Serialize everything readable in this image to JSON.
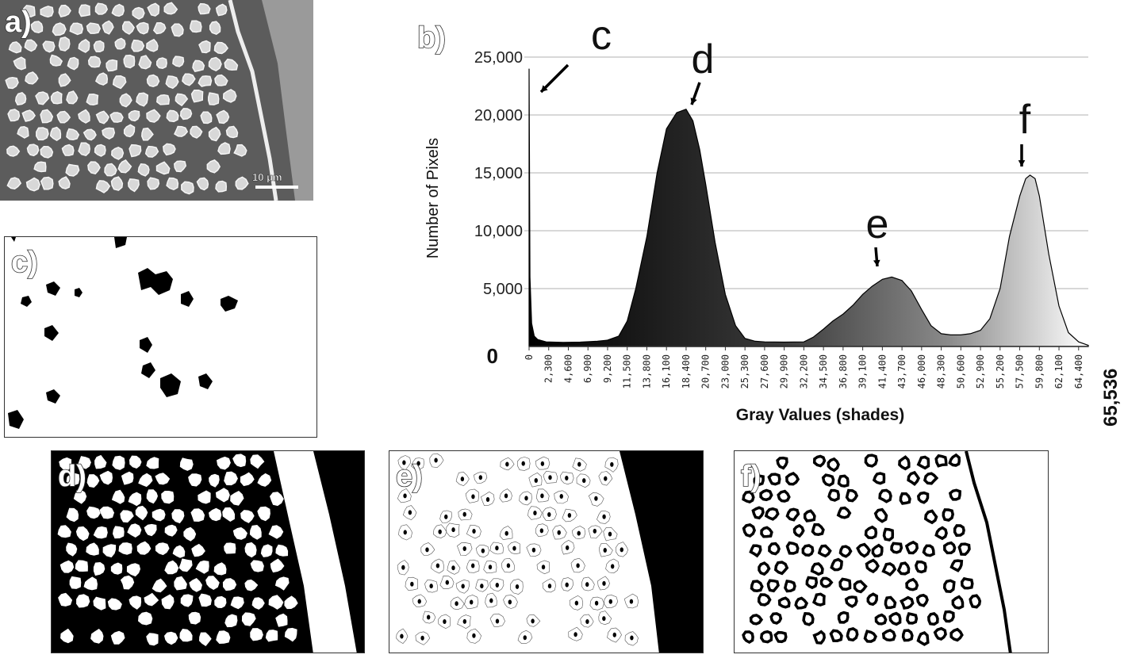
{
  "panels": {
    "a": {
      "label": "a)",
      "scalebar": "10 μm"
    },
    "b": {
      "label": "b)"
    },
    "c": {
      "label": "c)"
    },
    "d": {
      "label": "d)"
    },
    "e": {
      "label": "e)"
    },
    "f": {
      "label": "f)"
    }
  },
  "chart_data": {
    "type": "area",
    "ylabel": "Number of Pixels",
    "xlabel": "Gray Values (shades)",
    "ylim": [
      0,
      25000
    ],
    "xlim": [
      0,
      65536
    ],
    "y_ticks": [
      "25,000",
      "20,000",
      "15,000",
      "10,000",
      "5,000"
    ],
    "y_zero_label": "0",
    "x_end_label": "65,536",
    "x_ticks": [
      "0",
      "2,300",
      "4,600",
      "6,900",
      "9,200",
      "11,500",
      "13,800",
      "16,100",
      "18,400",
      "20,700",
      "23,000",
      "25,300",
      "27,600",
      "29,900",
      "32,200",
      "34,500",
      "36,800",
      "39,100",
      "41,400",
      "43,700",
      "46,000",
      "48,300",
      "50,600",
      "52,900",
      "55,200",
      "57,500",
      "59,800",
      "62,100",
      "64,400"
    ],
    "grid": true,
    "x": [
      0,
      100,
      300,
      600,
      1000,
      2000,
      4000,
      6000,
      8000,
      9200,
      10500,
      11500,
      12500,
      13800,
      15000,
      16100,
      17300,
      18400,
      19200,
      20000,
      20700,
      21800,
      23000,
      24200,
      25300,
      26500,
      27600,
      29900,
      32200,
      33300,
      34500,
      35600,
      36800,
      38000,
      39100,
      40200,
      41400,
      42500,
      43700,
      44800,
      46000,
      47100,
      48300,
      49400,
      50600,
      51700,
      52900,
      54000,
      55200,
      56300,
      57500,
      58200,
      58700,
      59300,
      59800,
      60900,
      62100,
      63200,
      64400,
      65536
    ],
    "y": [
      24000,
      6000,
      2000,
      900,
      600,
      400,
      350,
      380,
      450,
      550,
      900,
      2200,
      5000,
      9500,
      15000,
      18800,
      20200,
      20500,
      19500,
      17000,
      14000,
      9000,
      4500,
      1800,
      700,
      450,
      400,
      380,
      400,
      800,
      1500,
      2200,
      2800,
      3600,
      4500,
      5200,
      5800,
      6000,
      5700,
      4800,
      3200,
      1800,
      1100,
      1000,
      1000,
      1100,
      1400,
      2400,
      5000,
      9500,
      13000,
      14500,
      14800,
      14500,
      13000,
      8000,
      3500,
      1200,
      400,
      100
    ],
    "annotations": [
      {
        "label": "c",
        "x": 0
      },
      {
        "label": "d",
        "x": 18400
      },
      {
        "label": "e",
        "x": 42500
      },
      {
        "label": "f",
        "x": 58700
      }
    ]
  }
}
